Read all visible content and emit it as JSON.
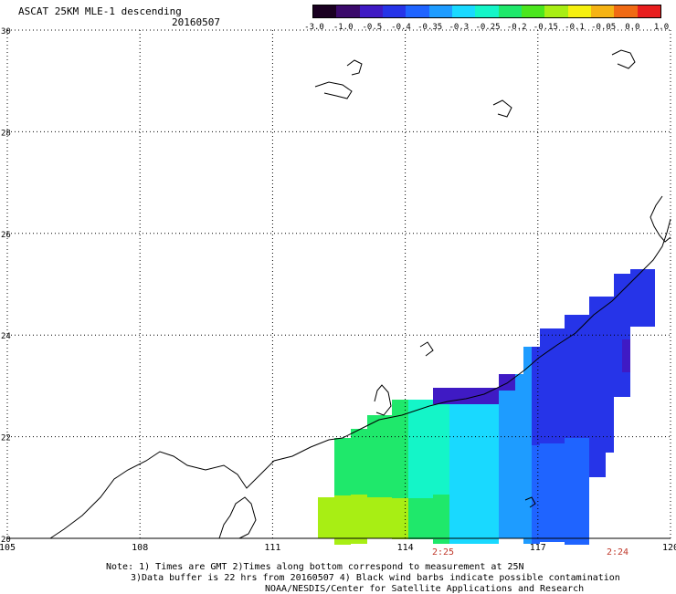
{
  "header": {
    "title": "ASCAT 25KM MLE-1 descending",
    "date": "20160507"
  },
  "colorbar": {
    "labels": [
      "-3.0",
      "-1.0",
      "-0.5",
      "-0.4",
      "-0.35",
      "-0.3",
      "-0.25",
      "-0.2",
      "-0.15",
      "-0.1",
      "-0.05",
      "0.0",
      "1.0"
    ],
    "colors": [
      "#1a0021",
      "#3b0a6b",
      "#3f1ac4",
      "#2634e8",
      "#1f64ff",
      "#1e9cff",
      "#19d9ff",
      "#14f5c8",
      "#1fe86b",
      "#4be61e",
      "#a8ee14",
      "#f5f00f",
      "#f5b314",
      "#f06a14",
      "#e81e1e"
    ]
  },
  "axes": {
    "lat_labels": [
      "30",
      "28",
      "26",
      "24",
      "22",
      "20"
    ],
    "lon_labels": [
      "105",
      "108",
      "111",
      "114",
      "117",
      "120"
    ]
  },
  "times": {
    "left": "2:25",
    "right": "2:24"
  },
  "notes": {
    "line1": "Note: 1) Times are GMT 2)Times along bottom correspond to measurement at 25N",
    "line2": "3)Data buffer is 22 hrs from 20160507 4) Black wind barbs indicate possible contamination",
    "line3": "NOAA/NESDIS/Center for Satellite Applications and Research"
  },
  "legend_colors": {
    "coast": "#000000",
    "grid": "#000000",
    "time_label": "#c0392b"
  }
}
